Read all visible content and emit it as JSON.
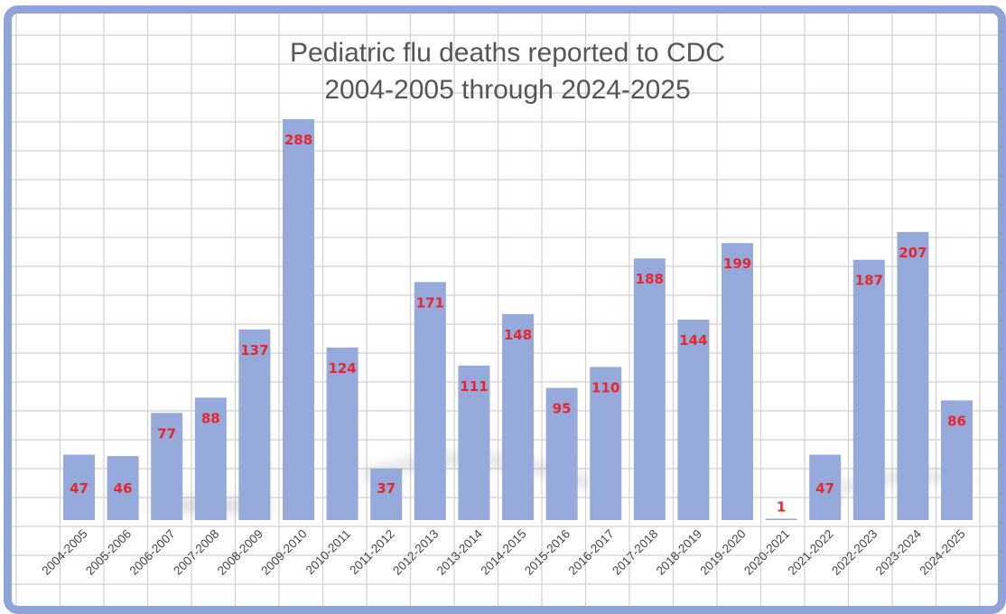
{
  "chart_data": {
    "type": "bar",
    "title": [
      "Pediatric flu deaths reported to CDC",
      "2004-2005 through 2024-2025"
    ],
    "xlabel": "",
    "ylabel": "",
    "ylim": [
      0,
      300
    ],
    "grid": true,
    "legend": "none",
    "colors": {
      "bar": "#95a9db",
      "value_label": "#e8262b",
      "frame": "#8fa3d8",
      "title": "#555555"
    },
    "categories": [
      "2004-2005",
      "2005-2006",
      "2006-2007",
      "2007-2008",
      "2008-2009",
      "2009-2010",
      "2010-2011",
      "2011-2012",
      "2012-2013",
      "2013-2014",
      "2014-2015",
      "2015-2016",
      "2016-2017",
      "2017-2018",
      "2018-2019",
      "2019-2020",
      "2020-2021",
      "2021-2022",
      "2022-2023",
      "2023-2024",
      "2024-2025"
    ],
    "values": [
      47,
      46,
      77,
      88,
      137,
      288,
      124,
      37,
      171,
      111,
      148,
      95,
      110,
      188,
      144,
      199,
      1,
      47,
      187,
      207,
      86
    ]
  }
}
